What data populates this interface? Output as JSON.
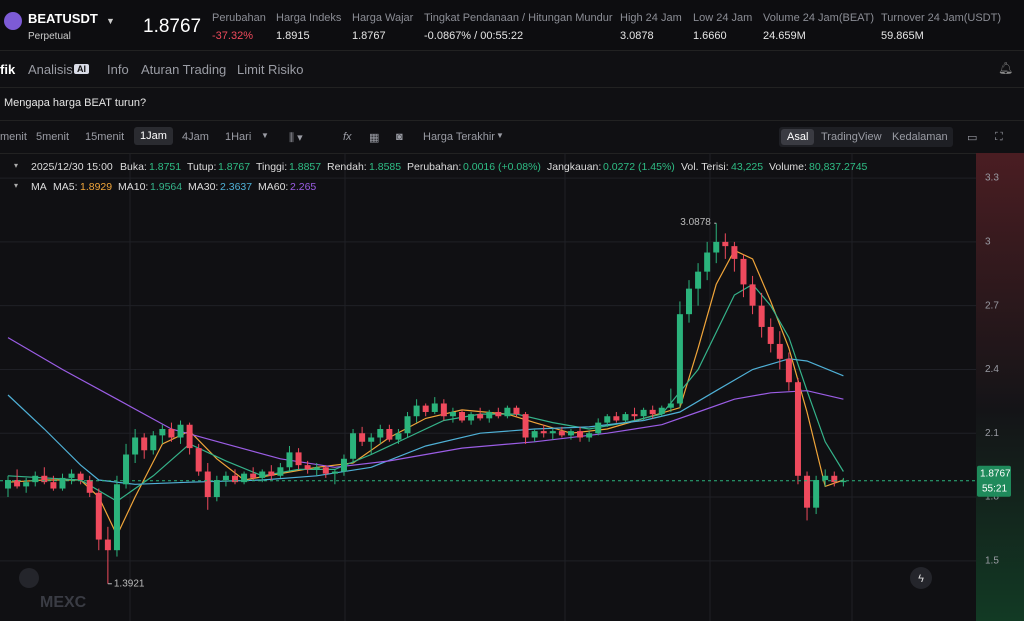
{
  "header": {
    "symbol": "BEATUSDT",
    "contract": "Perpetual",
    "price": "1.8767",
    "stats": [
      {
        "label": "Perubahan",
        "value": "-37.32%"
      },
      {
        "label": "Harga Indeks",
        "value": "1.8915"
      },
      {
        "label": "Harga Wajar",
        "value": "1.8767"
      },
      {
        "label": "Tingkat Pendanaan / Hitungan Mundur",
        "value": "-0.0867% / 00:55:22"
      },
      {
        "label": "High 24 Jam",
        "value": "3.0878"
      },
      {
        "label": "Low 24 Jam",
        "value": "1.6660"
      },
      {
        "label": "Volume 24 Jam(BEAT)",
        "value": "24.659M"
      },
      {
        "label": "Turnover 24 Jam(USDT)",
        "value": "59.865M"
      }
    ]
  },
  "tabs": [
    "fik",
    "Analisis",
    "Info",
    "Aturan Trading",
    "Limit Risiko"
  ],
  "ai_badge": "AI",
  "question": "Mengapa harga BEAT turun?",
  "toolbar": {
    "intervals": [
      "menit",
      "5menit",
      "15menit",
      "1Jam",
      "4Jam",
      "1Hari"
    ],
    "price_type": "Harga Terakhir",
    "views": [
      "Asal",
      "TradingView",
      "Kedalaman"
    ]
  },
  "info": {
    "time": "2025/12/30 15:00",
    "items": [
      {
        "label": "Buka:",
        "value": "1.8751"
      },
      {
        "label": "Tutup:",
        "value": "1.8767"
      },
      {
        "label": "Tinggi:",
        "value": "1.8857"
      },
      {
        "label": "Rendah:",
        "value": "1.8585"
      },
      {
        "label": "Perubahan:",
        "value": "0.0016 (+0.08%)"
      },
      {
        "label": "Jangkauan:",
        "value": "0.0272 (1.45%)"
      },
      {
        "label": "Vol. Terisi:",
        "value": "43,225"
      },
      {
        "label": "Volume:",
        "value": "80,837.2745"
      }
    ]
  },
  "countdown": "55:21",
  "watermark": "MEXC",
  "chart_data": {
    "type": "candlestick",
    "ma_title": "MA",
    "up_color": "#2bb37c",
    "down_color": "#ef4a5d",
    "ylim": [
      1.217,
      3.418
    ],
    "yticks": [
      1.5,
      1.8,
      2.1,
      2.4,
      2.7,
      3,
      3.3
    ],
    "ohlc": [
      [
        1.84,
        1.9,
        1.8,
        1.88
      ],
      [
        1.88,
        1.93,
        1.84,
        1.85
      ],
      [
        1.85,
        1.89,
        1.82,
        1.87
      ],
      [
        1.87,
        1.92,
        1.85,
        1.9
      ],
      [
        1.9,
        1.94,
        1.86,
        1.87
      ],
      [
        1.87,
        1.9,
        1.83,
        1.84
      ],
      [
        1.84,
        1.91,
        1.83,
        1.89
      ],
      [
        1.89,
        1.93,
        1.86,
        1.91
      ],
      [
        1.91,
        1.92,
        1.86,
        1.88
      ],
      [
        1.88,
        1.9,
        1.8,
        1.82
      ],
      [
        1.82,
        1.84,
        1.55,
        1.6
      ],
      [
        1.6,
        1.66,
        1.3921,
        1.55
      ],
      [
        1.55,
        1.9,
        1.52,
        1.86
      ],
      [
        1.86,
        2.05,
        1.84,
        2.0
      ],
      [
        2.0,
        2.12,
        1.96,
        2.08
      ],
      [
        2.08,
        2.1,
        1.98,
        2.02
      ],
      [
        2.02,
        2.11,
        2.0,
        2.09
      ],
      [
        2.09,
        2.14,
        2.05,
        2.12
      ],
      [
        2.12,
        2.15,
        2.06,
        2.08
      ],
      [
        2.08,
        2.16,
        2.05,
        2.14
      ],
      [
        2.14,
        2.15,
        2.0,
        2.03
      ],
      [
        2.03,
        2.05,
        1.9,
        1.92
      ],
      [
        1.92,
        1.96,
        1.74,
        1.8
      ],
      [
        1.8,
        1.9,
        1.78,
        1.88
      ],
      [
        1.88,
        1.92,
        1.85,
        1.9
      ],
      [
        1.9,
        1.93,
        1.86,
        1.87
      ],
      [
        1.87,
        1.92,
        1.86,
        1.91
      ],
      [
        1.91,
        1.94,
        1.88,
        1.89
      ],
      [
        1.89,
        1.93,
        1.87,
        1.92
      ],
      [
        1.92,
        1.95,
        1.88,
        1.9
      ],
      [
        1.9,
        1.96,
        1.89,
        1.94
      ],
      [
        1.94,
        2.04,
        1.92,
        2.01
      ],
      [
        2.01,
        2.03,
        1.93,
        1.95
      ],
      [
        1.95,
        1.97,
        1.91,
        1.93
      ],
      [
        1.93,
        1.96,
        1.9,
        1.94
      ],
      [
        1.94,
        1.95,
        1.89,
        1.91
      ],
      [
        1.91,
        1.93,
        1.86,
        1.92
      ],
      [
        1.92,
        2.0,
        1.9,
        1.98
      ],
      [
        1.98,
        2.12,
        1.96,
        2.1
      ],
      [
        2.1,
        2.13,
        2.04,
        2.06
      ],
      [
        2.06,
        2.1,
        2.0,
        2.08
      ],
      [
        2.08,
        2.14,
        2.05,
        2.12
      ],
      [
        2.12,
        2.14,
        2.06,
        2.07
      ],
      [
        2.07,
        2.12,
        2.05,
        2.1
      ],
      [
        2.1,
        2.2,
        2.08,
        2.18
      ],
      [
        2.18,
        2.26,
        2.15,
        2.23
      ],
      [
        2.23,
        2.24,
        2.18,
        2.2
      ],
      [
        2.2,
        2.27,
        2.19,
        2.24
      ],
      [
        2.24,
        2.26,
        2.16,
        2.18
      ],
      [
        2.18,
        2.22,
        2.15,
        2.2
      ],
      [
        2.2,
        2.21,
        2.15,
        2.16
      ],
      [
        2.16,
        2.2,
        2.14,
        2.19
      ],
      [
        2.19,
        2.22,
        2.16,
        2.17
      ],
      [
        2.17,
        2.21,
        2.15,
        2.2
      ],
      [
        2.2,
        2.22,
        2.17,
        2.18
      ],
      [
        2.18,
        2.23,
        2.17,
        2.22
      ],
      [
        2.22,
        2.23,
        2.18,
        2.19
      ],
      [
        2.19,
        2.2,
        2.05,
        2.08
      ],
      [
        2.08,
        2.12,
        2.06,
        2.11
      ],
      [
        2.11,
        2.14,
        2.08,
        2.1
      ],
      [
        2.1,
        2.12,
        2.07,
        2.11
      ],
      [
        2.11,
        2.13,
        2.08,
        2.09
      ],
      [
        2.09,
        2.12,
        2.07,
        2.11
      ],
      [
        2.11,
        2.13,
        2.06,
        2.08
      ],
      [
        2.08,
        2.11,
        2.06,
        2.1
      ],
      [
        2.1,
        2.17,
        2.09,
        2.15
      ],
      [
        2.15,
        2.19,
        2.13,
        2.18
      ],
      [
        2.18,
        2.2,
        2.15,
        2.16
      ],
      [
        2.16,
        2.2,
        2.15,
        2.19
      ],
      [
        2.19,
        2.22,
        2.16,
        2.18
      ],
      [
        2.18,
        2.22,
        2.16,
        2.21
      ],
      [
        2.21,
        2.23,
        2.17,
        2.19
      ],
      [
        2.19,
        2.23,
        2.18,
        2.22
      ],
      [
        2.22,
        2.31,
        2.2,
        2.24
      ],
      [
        2.24,
        2.72,
        2.22,
        2.66
      ],
      [
        2.66,
        2.82,
        2.62,
        2.78
      ],
      [
        2.78,
        2.9,
        2.7,
        2.86
      ],
      [
        2.86,
        3.0,
        2.82,
        2.95
      ],
      [
        2.95,
        3.0878,
        2.9,
        3.0
      ],
      [
        3.0,
        3.04,
        2.92,
        2.98
      ],
      [
        2.98,
        3.0,
        2.86,
        2.92
      ],
      [
        2.92,
        2.94,
        2.74,
        2.8
      ],
      [
        2.8,
        2.84,
        2.66,
        2.7
      ],
      [
        2.7,
        2.76,
        2.55,
        2.6
      ],
      [
        2.6,
        2.64,
        2.48,
        2.52
      ],
      [
        2.52,
        2.58,
        2.4,
        2.45
      ],
      [
        2.45,
        2.48,
        2.3,
        2.34
      ],
      [
        2.34,
        2.36,
        1.86,
        1.9
      ],
      [
        1.9,
        1.92,
        1.69,
        1.75
      ],
      [
        1.75,
        1.9,
        1.72,
        1.88
      ],
      [
        1.88,
        1.93,
        1.85,
        1.9
      ],
      [
        1.9,
        1.92,
        1.85,
        1.87
      ],
      [
        1.87,
        1.89,
        1.85,
        1.8767
      ]
    ],
    "series": [
      {
        "name": "MA5:",
        "legend_value": "1.8929",
        "color": "#f0a53a",
        "x": [
          0,
          4,
          8,
          10,
          12,
          14,
          17,
          20,
          23,
          26,
          30,
          34,
          38,
          42,
          46,
          50,
          55,
          58,
          62,
          66,
          70,
          74,
          76,
          78,
          80,
          82,
          84,
          86,
          88,
          90,
          92
        ],
        "values": [
          1.87,
          1.88,
          1.88,
          1.8,
          1.62,
          1.8,
          2.05,
          2.11,
          1.98,
          1.88,
          1.91,
          1.94,
          1.96,
          2.08,
          2.17,
          2.21,
          2.19,
          2.15,
          2.1,
          2.12,
          2.17,
          2.22,
          2.5,
          2.8,
          2.96,
          2.92,
          2.72,
          2.5,
          2.2,
          1.85,
          1.88
        ]
      },
      {
        "name": "MA10:",
        "legend_value": "1.9564",
        "color": "#35b38a",
        "x": [
          0,
          8,
          12,
          16,
          20,
          24,
          28,
          32,
          36,
          40,
          44,
          48,
          52,
          56,
          60,
          64,
          68,
          72,
          76,
          80,
          82,
          84,
          86,
          88,
          90,
          92
        ],
        "values": [
          1.9,
          1.88,
          1.78,
          1.9,
          2.05,
          1.97,
          1.9,
          1.93,
          1.93,
          2.0,
          2.08,
          2.16,
          2.19,
          2.19,
          2.15,
          2.12,
          2.15,
          2.19,
          2.4,
          2.75,
          2.8,
          2.7,
          2.55,
          2.3,
          2.06,
          1.92
        ]
      },
      {
        "name": "MA30:",
        "legend_value": "2.3637",
        "color": "#4fb0d6",
        "x": [
          0,
          4,
          8,
          10,
          14,
          20,
          28,
          34,
          40,
          46,
          52,
          58,
          64,
          70,
          74,
          78,
          82,
          86,
          88,
          92
        ],
        "values": [
          2.28,
          2.12,
          1.95,
          1.88,
          1.86,
          1.87,
          1.88,
          1.9,
          1.94,
          2.04,
          2.1,
          2.12,
          2.13,
          2.16,
          2.2,
          2.3,
          2.4,
          2.45,
          2.44,
          2.37
        ]
      },
      {
        "name": "MA60:",
        "legend_value": "2.265",
        "color": "#9b5de5",
        "x": [
          0,
          6,
          12,
          18,
          24,
          30,
          36,
          42,
          50,
          58,
          66,
          72,
          76,
          80,
          84,
          88,
          92
        ],
        "values": [
          2.55,
          2.4,
          2.26,
          2.12,
          2.05,
          1.98,
          1.94,
          1.97,
          2.03,
          2.06,
          2.1,
          2.14,
          2.2,
          2.26,
          2.29,
          2.3,
          2.26
        ]
      }
    ]
  }
}
